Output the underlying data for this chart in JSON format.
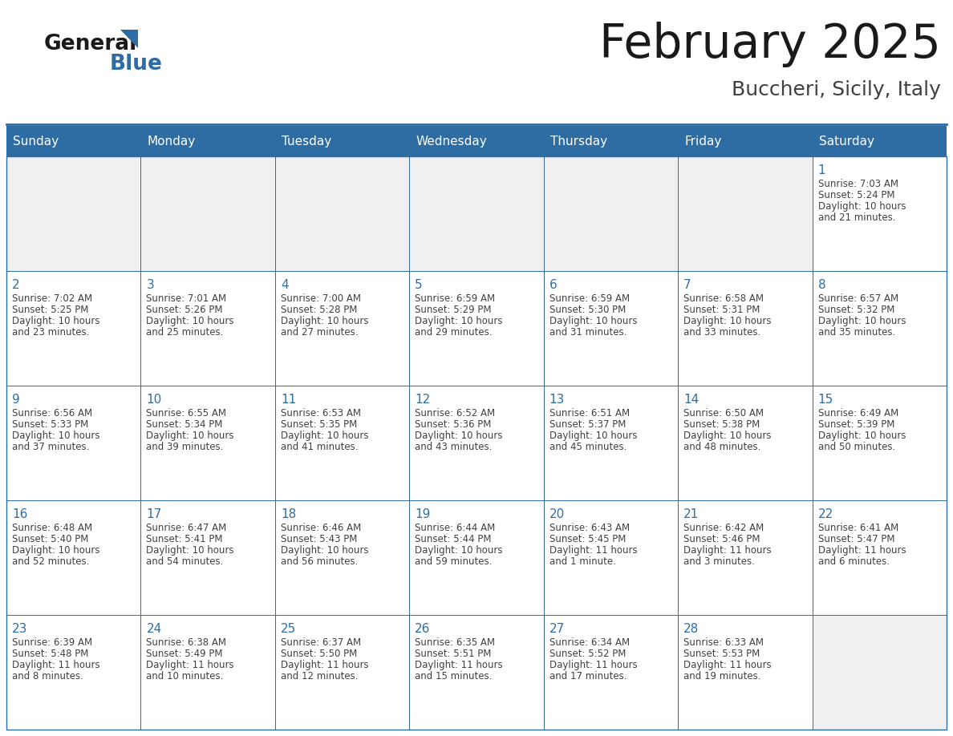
{
  "title": "February 2025",
  "subtitle": "Buccheri, Sicily, Italy",
  "header_bg": "#2E6DA4",
  "header_text": "#FFFFFF",
  "day_names": [
    "Sunday",
    "Monday",
    "Tuesday",
    "Wednesday",
    "Thursday",
    "Friday",
    "Saturday"
  ],
  "cell_bg": "#FFFFFF",
  "empty_cell_bg": "#F0F0F0",
  "border_color": "#2E6DA4",
  "day_num_color": "#2E6DA4",
  "info_color": "#404040",
  "calendar": [
    [
      null,
      null,
      null,
      null,
      null,
      null,
      {
        "day": "1",
        "sunrise": "7:03 AM",
        "sunset": "5:24 PM",
        "daylight": "10 hours",
        "daylight2": "and 21 minutes."
      }
    ],
    [
      {
        "day": "2",
        "sunrise": "7:02 AM",
        "sunset": "5:25 PM",
        "daylight": "10 hours",
        "daylight2": "and 23 minutes."
      },
      {
        "day": "3",
        "sunrise": "7:01 AM",
        "sunset": "5:26 PM",
        "daylight": "10 hours",
        "daylight2": "and 25 minutes."
      },
      {
        "day": "4",
        "sunrise": "7:00 AM",
        "sunset": "5:28 PM",
        "daylight": "10 hours",
        "daylight2": "and 27 minutes."
      },
      {
        "day": "5",
        "sunrise": "6:59 AM",
        "sunset": "5:29 PM",
        "daylight": "10 hours",
        "daylight2": "and 29 minutes."
      },
      {
        "day": "6",
        "sunrise": "6:59 AM",
        "sunset": "5:30 PM",
        "daylight": "10 hours",
        "daylight2": "and 31 minutes."
      },
      {
        "day": "7",
        "sunrise": "6:58 AM",
        "sunset": "5:31 PM",
        "daylight": "10 hours",
        "daylight2": "and 33 minutes."
      },
      {
        "day": "8",
        "sunrise": "6:57 AM",
        "sunset": "5:32 PM",
        "daylight": "10 hours",
        "daylight2": "and 35 minutes."
      }
    ],
    [
      {
        "day": "9",
        "sunrise": "6:56 AM",
        "sunset": "5:33 PM",
        "daylight": "10 hours",
        "daylight2": "and 37 minutes."
      },
      {
        "day": "10",
        "sunrise": "6:55 AM",
        "sunset": "5:34 PM",
        "daylight": "10 hours",
        "daylight2": "and 39 minutes."
      },
      {
        "day": "11",
        "sunrise": "6:53 AM",
        "sunset": "5:35 PM",
        "daylight": "10 hours",
        "daylight2": "and 41 minutes."
      },
      {
        "day": "12",
        "sunrise": "6:52 AM",
        "sunset": "5:36 PM",
        "daylight": "10 hours",
        "daylight2": "and 43 minutes."
      },
      {
        "day": "13",
        "sunrise": "6:51 AM",
        "sunset": "5:37 PM",
        "daylight": "10 hours",
        "daylight2": "and 45 minutes."
      },
      {
        "day": "14",
        "sunrise": "6:50 AM",
        "sunset": "5:38 PM",
        "daylight": "10 hours",
        "daylight2": "and 48 minutes."
      },
      {
        "day": "15",
        "sunrise": "6:49 AM",
        "sunset": "5:39 PM",
        "daylight": "10 hours",
        "daylight2": "and 50 minutes."
      }
    ],
    [
      {
        "day": "16",
        "sunrise": "6:48 AM",
        "sunset": "5:40 PM",
        "daylight": "10 hours",
        "daylight2": "and 52 minutes."
      },
      {
        "day": "17",
        "sunrise": "6:47 AM",
        "sunset": "5:41 PM",
        "daylight": "10 hours",
        "daylight2": "and 54 minutes."
      },
      {
        "day": "18",
        "sunrise": "6:46 AM",
        "sunset": "5:43 PM",
        "daylight": "10 hours",
        "daylight2": "and 56 minutes."
      },
      {
        "day": "19",
        "sunrise": "6:44 AM",
        "sunset": "5:44 PM",
        "daylight": "10 hours",
        "daylight2": "and 59 minutes."
      },
      {
        "day": "20",
        "sunrise": "6:43 AM",
        "sunset": "5:45 PM",
        "daylight": "11 hours",
        "daylight2": "and 1 minute."
      },
      {
        "day": "21",
        "sunrise": "6:42 AM",
        "sunset": "5:46 PM",
        "daylight": "11 hours",
        "daylight2": "and 3 minutes."
      },
      {
        "day": "22",
        "sunrise": "6:41 AM",
        "sunset": "5:47 PM",
        "daylight": "11 hours",
        "daylight2": "and 6 minutes."
      }
    ],
    [
      {
        "day": "23",
        "sunrise": "6:39 AM",
        "sunset": "5:48 PM",
        "daylight": "11 hours",
        "daylight2": "and 8 minutes."
      },
      {
        "day": "24",
        "sunrise": "6:38 AM",
        "sunset": "5:49 PM",
        "daylight": "11 hours",
        "daylight2": "and 10 minutes."
      },
      {
        "day": "25",
        "sunrise": "6:37 AM",
        "sunset": "5:50 PM",
        "daylight": "11 hours",
        "daylight2": "and 12 minutes."
      },
      {
        "day": "26",
        "sunrise": "6:35 AM",
        "sunset": "5:51 PM",
        "daylight": "11 hours",
        "daylight2": "and 15 minutes."
      },
      {
        "day": "27",
        "sunrise": "6:34 AM",
        "sunset": "5:52 PM",
        "daylight": "11 hours",
        "daylight2": "and 17 minutes."
      },
      {
        "day": "28",
        "sunrise": "6:33 AM",
        "sunset": "5:53 PM",
        "daylight": "11 hours",
        "daylight2": "and 19 minutes."
      },
      null
    ]
  ]
}
